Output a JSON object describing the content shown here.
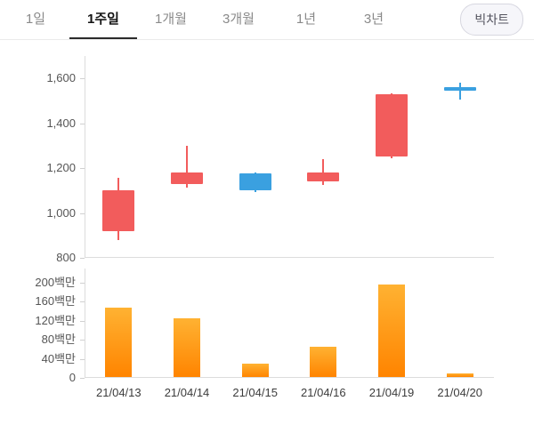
{
  "tabs": [
    {
      "label": "1일",
      "active": false
    },
    {
      "label": "1주일",
      "active": true
    },
    {
      "label": "1개월",
      "active": false
    },
    {
      "label": "3개월",
      "active": false
    },
    {
      "label": "1년",
      "active": false
    },
    {
      "label": "3년",
      "active": false
    }
  ],
  "big_chart_button": "빅차트",
  "colors": {
    "up": "#f25c5c",
    "down": "#3aa0e0",
    "volume_top": "#ffb232",
    "volume_bottom": "#ff8400",
    "axis": "#dcdcdc"
  },
  "chart_data": [
    {
      "type": "candlestick",
      "x": [
        "21/04/13",
        "21/04/14",
        "21/04/15",
        "21/04/16",
        "21/04/19",
        "21/04/20"
      ],
      "series": [
        {
          "name": "price",
          "points": [
            {
              "open": 920,
              "close": 1100,
              "high": 1155,
              "low": 880,
              "direction": "up"
            },
            {
              "open": 1130,
              "close": 1180,
              "high": 1300,
              "low": 1115,
              "direction": "up"
            },
            {
              "open": 1175,
              "close": 1100,
              "high": 1180,
              "low": 1095,
              "direction": "down"
            },
            {
              "open": 1140,
              "close": 1180,
              "high": 1240,
              "low": 1125,
              "direction": "up"
            },
            {
              "open": 1250,
              "close": 1530,
              "high": 1535,
              "low": 1245,
              "direction": "up"
            },
            {
              "open": 1560,
              "close": 1545,
              "high": 1580,
              "low": 1505,
              "direction": "down"
            }
          ]
        }
      ],
      "ylim": [
        800,
        1700
      ],
      "yticks": [
        800,
        1000,
        1200,
        1400,
        1600
      ],
      "ytick_labels": [
        "800",
        "1,000",
        "1,200",
        "1,400",
        "1,600"
      ],
      "grid": false,
      "legend": "none"
    },
    {
      "type": "bar",
      "categories": [
        "21/04/13",
        "21/04/14",
        "21/04/15",
        "21/04/16",
        "21/04/19",
        "21/04/20"
      ],
      "values": [
        148,
        126,
        30,
        65,
        197,
        10
      ],
      "unit": "백만",
      "ylim": [
        0,
        230
      ],
      "yticks": [
        0,
        40,
        80,
        120,
        160,
        200
      ],
      "ytick_labels": [
        "0",
        "40백만",
        "80백만",
        "120백만",
        "160백만",
        "200백만"
      ],
      "grid": false,
      "legend": "none"
    }
  ]
}
